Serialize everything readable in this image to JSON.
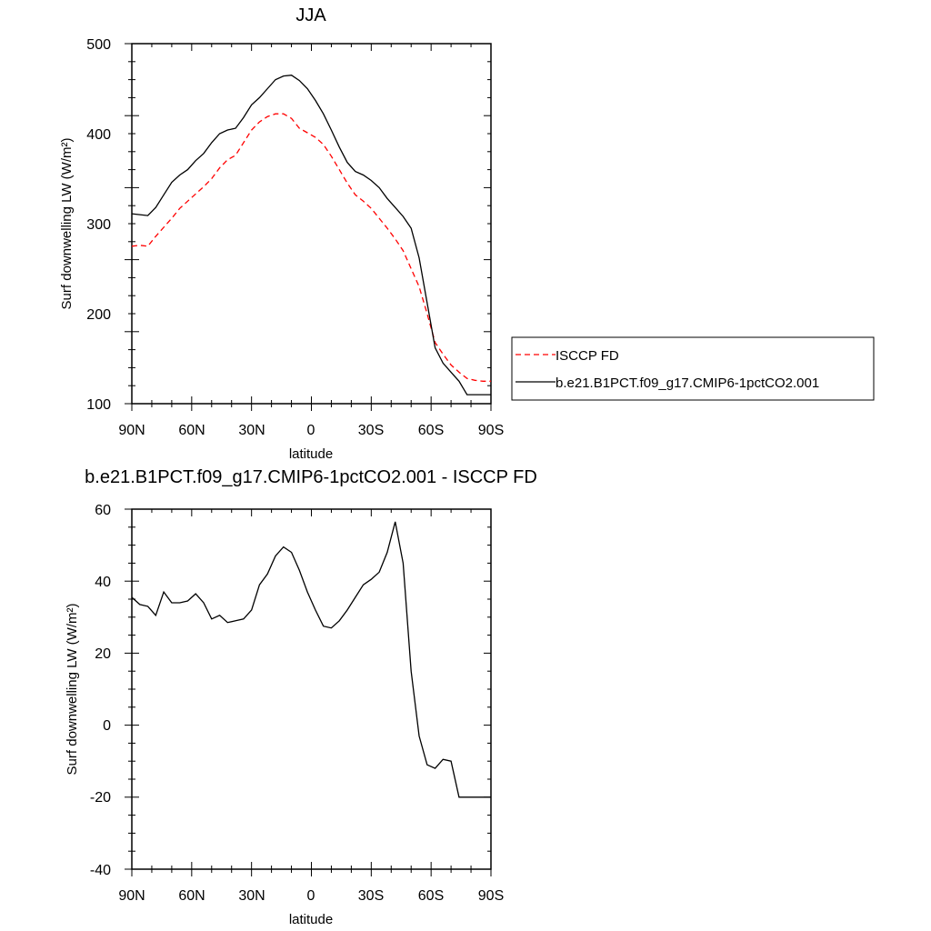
{
  "chart_data": [
    {
      "type": "line",
      "title": "JJA",
      "xlabel": "latitude",
      "ylabel": "Surf downwelling LW (W/m²)",
      "ylim": [
        100,
        500
      ],
      "yticks": [
        "500",
        "400",
        "300",
        "200",
        "100"
      ],
      "xticks": [
        "90N",
        "60N",
        "30N",
        "0",
        "30S",
        "60S",
        "90S"
      ],
      "x": [
        90,
        86,
        82,
        78,
        74,
        70,
        66,
        62,
        58,
        54,
        50,
        46,
        42,
        38,
        34,
        30,
        26,
        22,
        18,
        14,
        10,
        6,
        2,
        -2,
        -6,
        -10,
        -14,
        -18,
        -22,
        -26,
        -30,
        -34,
        -38,
        -42,
        -46,
        -50,
        -54,
        -58,
        -62,
        -66,
        -70,
        -74,
        -78,
        -82,
        -86,
        -90
      ],
      "series": [
        {
          "name": "ISCCP FD",
          "color": "#ff0000",
          "dash": "dashed",
          "values": [
            275,
            276,
            275,
            286,
            296,
            306,
            317,
            325,
            333,
            341,
            350,
            362,
            371,
            376,
            390,
            404,
            413,
            419,
            422,
            422,
            417,
            406,
            401,
            396,
            388,
            375,
            360,
            345,
            332,
            325,
            317,
            306,
            295,
            283,
            270,
            250,
            230,
            200,
            168,
            155,
            143,
            135,
            128,
            126,
            125,
            125
          ]
        },
        {
          "name": "b.e21.B1PCT.f09_g17.CMIP6-1pctCO2.001",
          "color": "#000000",
          "dash": "solid",
          "values": [
            311,
            310,
            309,
            318,
            332,
            346,
            354,
            360,
            370,
            378,
            390,
            400,
            404,
            406,
            418,
            432,
            440,
            450,
            460,
            464,
            465,
            459,
            450,
            437,
            422,
            404,
            385,
            368,
            358,
            354,
            348,
            340,
            328,
            318,
            308,
            295,
            262,
            212,
            162,
            145,
            135,
            125,
            110,
            110,
            110,
            110
          ]
        }
      ],
      "legend": "right"
    },
    {
      "type": "line",
      "title": "b.e21.B1PCT.f09_g17.CMIP6-1pctCO2.001 - ISCCP FD",
      "xlabel": "latitude",
      "ylabel": "Surf downwelling LW (W/m²)",
      "ylim": [
        -40,
        60
      ],
      "yticks": [
        "60",
        "40",
        "20",
        "0",
        "-20",
        "-40"
      ],
      "xticks": [
        "90N",
        "60N",
        "30N",
        "0",
        "30S",
        "60S",
        "90S"
      ],
      "x": [
        90,
        86,
        82,
        78,
        74,
        70,
        66,
        62,
        58,
        54,
        50,
        46,
        42,
        38,
        34,
        30,
        26,
        22,
        18,
        14,
        10,
        6,
        2,
        -2,
        -6,
        -10,
        -14,
        -18,
        -22,
        -26,
        -30,
        -34,
        -38,
        -42,
        -46,
        -50,
        -54,
        -58,
        -62,
        -66,
        -70,
        -74,
        -78,
        -82,
        -86,
        -90
      ],
      "series": [
        {
          "color": "#000000",
          "dash": "solid",
          "values": [
            35.5,
            33.5,
            33,
            30.5,
            37,
            34,
            34,
            34.5,
            36.5,
            34,
            29.5,
            30.5,
            28.5,
            29,
            29.5,
            32,
            39,
            42,
            47,
            49.5,
            48,
            43,
            37,
            32,
            27.5,
            27,
            29,
            32,
            35.5,
            39,
            40.5,
            42.5,
            48,
            56.5,
            45,
            15,
            -3,
            -11,
            -12,
            -9.5,
            -10,
            -20,
            -20,
            -20,
            -20,
            -20
          ]
        }
      ]
    }
  ]
}
